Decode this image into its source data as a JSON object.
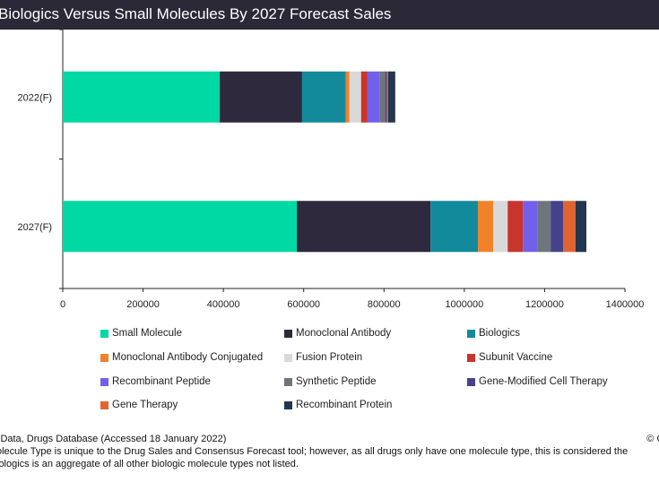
{
  "title": "Biologics Versus Small Molecules By 2027 Forecast Sales",
  "chart_data": {
    "type": "bar",
    "orientation": "horizontal",
    "stacked": true,
    "title": "Biologics Versus Small Molecules By 2027 Forecast Sales",
    "xlabel": "",
    "ylabel": "",
    "xlim": [
      0,
      1400000
    ],
    "x_ticks": [
      "0",
      "200000",
      "400000",
      "600000",
      "800000",
      "1000000",
      "1200000",
      "1400000"
    ],
    "x_tick_values": [
      0,
      200000,
      400000,
      600000,
      800000,
      1000000,
      1200000,
      1400000
    ],
    "categories": [
      "2022(F)",
      "2027(F)"
    ],
    "grid": false,
    "legend_position": "bottom",
    "series": [
      {
        "name": "Small Molecule",
        "color": "#00d9a3",
        "values": [
          391000,
          583000
        ]
      },
      {
        "name": "Monoclonal Antibody",
        "color": "#2e293c",
        "values": [
          205000,
          333000
        ]
      },
      {
        "name": "Biologics",
        "color": "#128a9c",
        "values": [
          109000,
          118000
        ]
      },
      {
        "name": "Monoclonal Antibody Conjugated",
        "color": "#f0822a",
        "values": [
          9000,
          38000
        ]
      },
      {
        "name": "Fusion Protein",
        "color": "#d9d9d9",
        "values": [
          29000,
          36000
        ]
      },
      {
        "name": "Subunit Vaccine",
        "color": "#c7352c",
        "values": [
          16000,
          38000
        ]
      },
      {
        "name": "Recombinant Peptide",
        "color": "#7360ea",
        "values": [
          31000,
          36000
        ]
      },
      {
        "name": "Synthetic Peptide",
        "color": "#6e767b",
        "values": [
          13000,
          33000
        ]
      },
      {
        "name": "Gene-Modified Cell Therapy",
        "color": "#45418a",
        "values": [
          4000,
          31000
        ]
      },
      {
        "name": "Gene Therapy",
        "color": "#e06430",
        "values": [
          3000,
          31000
        ]
      },
      {
        "name": "Recombinant Protein",
        "color": "#22364f",
        "values": [
          18000,
          27000
        ]
      }
    ]
  },
  "footer": {
    "source": "lData, Drugs Database (Accessed 18 January 2022)",
    "note_line1": "olecule Type is unique to the Drug Sales and Consensus Forecast tool; however, as all drugs only have one molecule type, this is considered the",
    "note_line2": "iologics is an aggregate of all other biologic molecule types not listed.",
    "copyright": "© G"
  }
}
